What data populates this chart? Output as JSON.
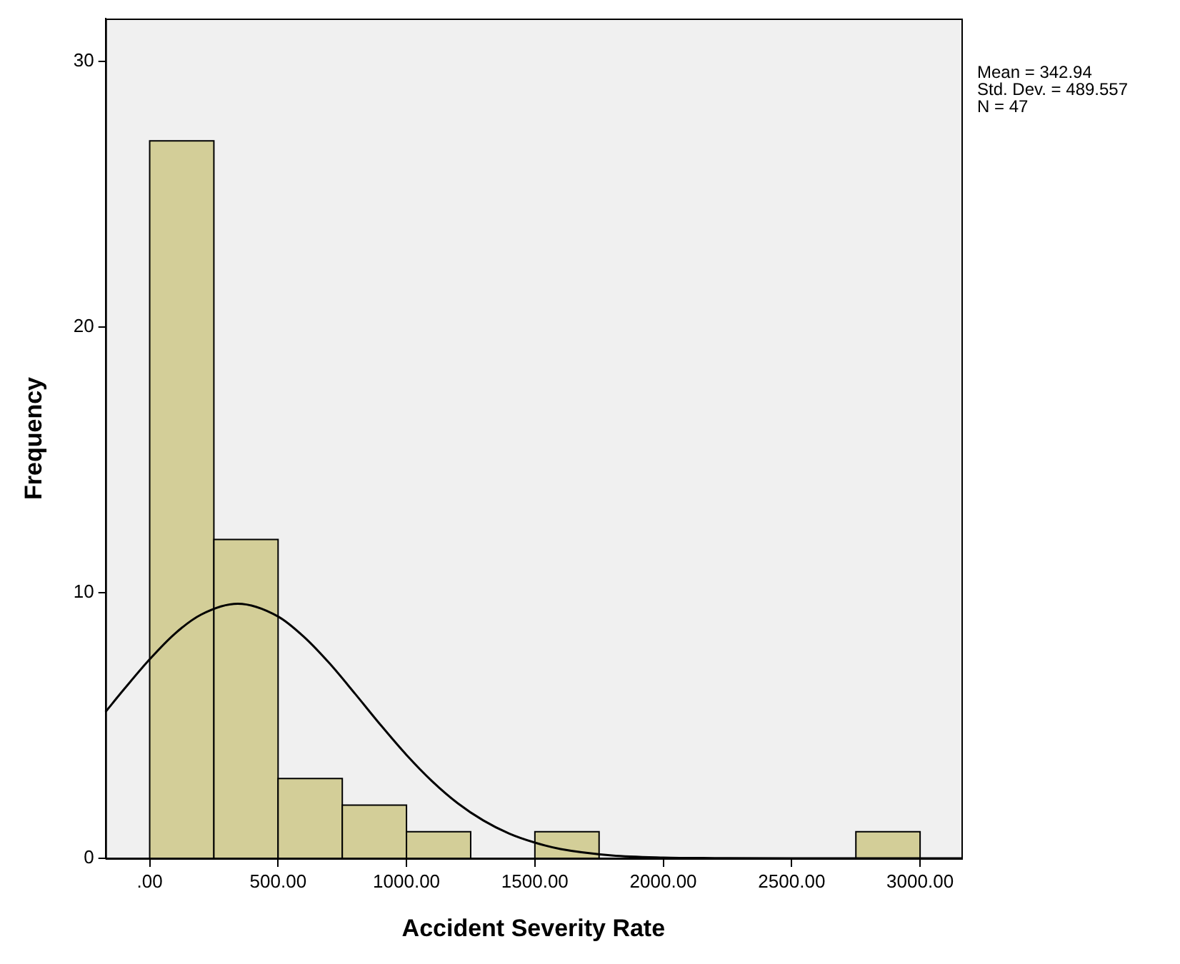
{
  "chart_data": {
    "type": "histogram",
    "xlabel": "Accident Severity Rate",
    "ylabel": "Frequency",
    "bins": [
      0,
      250,
      500,
      750,
      1000,
      1250,
      1500,
      1750,
      2000,
      2250,
      2500,
      2750,
      3000
    ],
    "values": [
      27,
      12,
      3,
      2,
      1,
      0,
      1,
      0,
      0,
      0,
      0,
      1
    ],
    "color": "#d3ce98",
    "series": [
      {
        "type": "line",
        "color": "#000000",
        "x": [
          -172,
          -100,
          0,
          100,
          200,
          342.94,
          500,
          600,
          700,
          800,
          900,
          1000,
          1100,
          1200,
          1300,
          1400,
          1500,
          1600,
          1800,
          2000,
          2200,
          2500,
          3000,
          3161
        ],
        "values": [
          5.51,
          6.36,
          7.49,
          8.47,
          9.17,
          9.58,
          9.1,
          8.34,
          7.34,
          6.19,
          5.01,
          3.89,
          2.9,
          2.07,
          1.42,
          0.93,
          0.59,
          0.35,
          0.11,
          0.03,
          0.01,
          0,
          0,
          0
        ]
      }
    ],
    "xlim": [
      -172,
      3161
    ],
    "xticks": [
      {
        "value": 0,
        "label": ".00"
      },
      {
        "value": 500,
        "label": "500.00"
      },
      {
        "value": 1000,
        "label": "1000.00"
      },
      {
        "value": 1500,
        "label": "1500.00"
      },
      {
        "value": 2000,
        "label": "2000.00"
      },
      {
        "value": 2500,
        "label": "2500.00"
      },
      {
        "value": 3000,
        "label": "3000.00"
      }
    ],
    "ylim": [
      0,
      31.6
    ],
    "yticks": [
      0,
      10,
      20,
      30
    ],
    "annotations": [
      "Mean = 342.94",
      "Std. Dev. = 489.557",
      "N = 47"
    ],
    "legend": false,
    "grid": false
  }
}
